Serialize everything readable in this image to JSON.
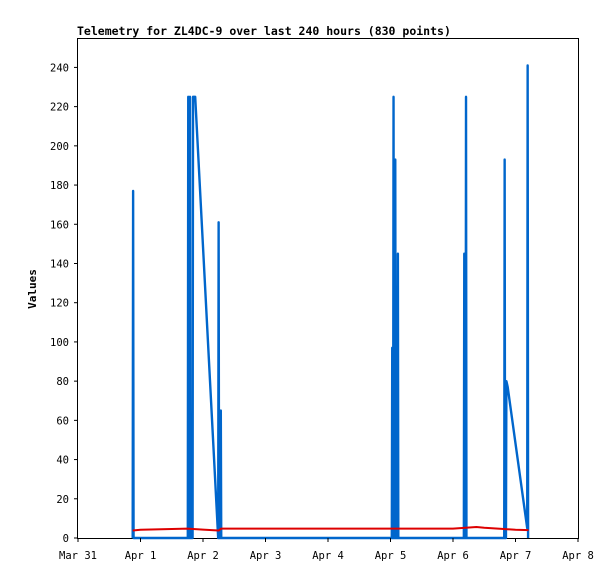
{
  "chart_data": {
    "type": "line",
    "title": "Telemetry for ZL4DC-9 over last 240 hours (830 points)",
    "ylabel": "Values",
    "xlabel": "",
    "ylim": [
      0,
      255
    ],
    "xlim": [
      "2023-03-31T00:00",
      "2023-04-08T00:00"
    ],
    "y_ticks": [
      0,
      20,
      40,
      60,
      80,
      100,
      120,
      140,
      160,
      180,
      200,
      220,
      240
    ],
    "x_ticks": [
      {
        "t": "2023-03-31T00:00",
        "label": "Mar 31"
      },
      {
        "t": "2023-04-01T00:00",
        "label": "Apr 1"
      },
      {
        "t": "2023-04-02T00:00",
        "label": "Apr 2"
      },
      {
        "t": "2023-04-03T00:00",
        "label": "Apr 3"
      },
      {
        "t": "2023-04-04T00:00",
        "label": "Apr 4"
      },
      {
        "t": "2023-04-05T00:00",
        "label": "Apr 5"
      },
      {
        "t": "2023-04-06T00:00",
        "label": "Apr 6"
      },
      {
        "t": "2023-04-07T00:00",
        "label": "Apr 7"
      },
      {
        "t": "2023-04-08T00:00",
        "label": "Apr 8"
      }
    ],
    "grid": false,
    "legend": "none",
    "series": [
      {
        "color": "#0066cc",
        "points": [
          [
            "2023-03-31T21:00",
            0
          ],
          [
            "2023-03-31T21:10",
            177
          ],
          [
            "2023-03-31T21:20",
            0
          ],
          [
            "2023-04-01T18:10",
            0
          ],
          [
            "2023-04-01T18:20",
            225
          ],
          [
            "2023-04-01T18:30",
            0
          ],
          [
            "2023-04-01T18:50",
            0
          ],
          [
            "2023-04-01T19:00",
            225
          ],
          [
            "2023-04-01T19:10",
            0
          ],
          [
            "2023-04-01T20:00",
            0
          ],
          [
            "2023-04-01T20:10",
            225
          ],
          [
            "2023-04-01T21:00",
            225
          ],
          [
            "2023-04-02T05:50",
            0
          ],
          [
            "2023-04-02T06:00",
            161
          ],
          [
            "2023-04-02T06:10",
            0
          ],
          [
            "2023-04-02T06:40",
            0
          ],
          [
            "2023-04-02T06:50",
            65
          ],
          [
            "2023-04-02T07:00",
            0
          ],
          [
            "2023-04-05T00:30",
            0
          ],
          [
            "2023-04-05T00:40",
            97
          ],
          [
            "2023-04-05T00:50",
            0
          ],
          [
            "2023-04-05T01:00",
            0
          ],
          [
            "2023-04-05T01:10",
            225
          ],
          [
            "2023-04-05T01:20",
            0
          ],
          [
            "2023-04-05T01:40",
            0
          ],
          [
            "2023-04-05T01:50",
            193
          ],
          [
            "2023-04-05T02:00",
            0
          ],
          [
            "2023-04-05T02:40",
            0
          ],
          [
            "2023-04-05T02:50",
            145
          ],
          [
            "2023-04-05T03:00",
            0
          ],
          [
            "2023-04-06T04:10",
            0
          ],
          [
            "2023-04-06T04:20",
            145
          ],
          [
            "2023-04-06T04:30",
            0
          ],
          [
            "2023-04-06T04:50",
            0
          ],
          [
            "2023-04-06T05:00",
            225
          ],
          [
            "2023-04-06T05:10",
            0
          ],
          [
            "2023-04-06T19:40",
            0
          ],
          [
            "2023-04-06T19:50",
            193
          ],
          [
            "2023-04-06T20:00",
            0
          ],
          [
            "2023-04-06T20:20",
            0
          ],
          [
            "2023-04-06T20:30",
            80
          ],
          [
            "2023-04-06T21:00",
            77
          ],
          [
            "2023-04-07T04:30",
            5
          ],
          [
            "2023-04-07T04:40",
            241
          ],
          [
            "2023-04-07T04:50",
            0
          ]
        ]
      },
      {
        "color": "#dd0000",
        "points": [
          [
            "2023-03-31T21:00",
            3.8
          ],
          [
            "2023-04-01T00:00",
            4.2
          ],
          [
            "2023-04-01T12:00",
            4.6
          ],
          [
            "2023-04-01T18:00",
            4.8
          ],
          [
            "2023-04-02T00:00",
            4.3
          ],
          [
            "2023-04-02T06:00",
            3.8
          ],
          [
            "2023-04-02T07:00",
            4.8
          ],
          [
            "2023-04-03T00:00",
            4.8
          ],
          [
            "2023-04-04T00:00",
            4.8
          ],
          [
            "2023-04-05T00:00",
            4.8
          ],
          [
            "2023-04-06T00:00",
            4.8
          ],
          [
            "2023-04-06T09:00",
            5.6
          ],
          [
            "2023-04-06T12:00",
            5.2
          ],
          [
            "2023-04-06T18:00",
            4.7
          ],
          [
            "2023-04-07T00:00",
            4.2
          ],
          [
            "2023-04-07T05:00",
            4.0
          ]
        ]
      }
    ]
  }
}
